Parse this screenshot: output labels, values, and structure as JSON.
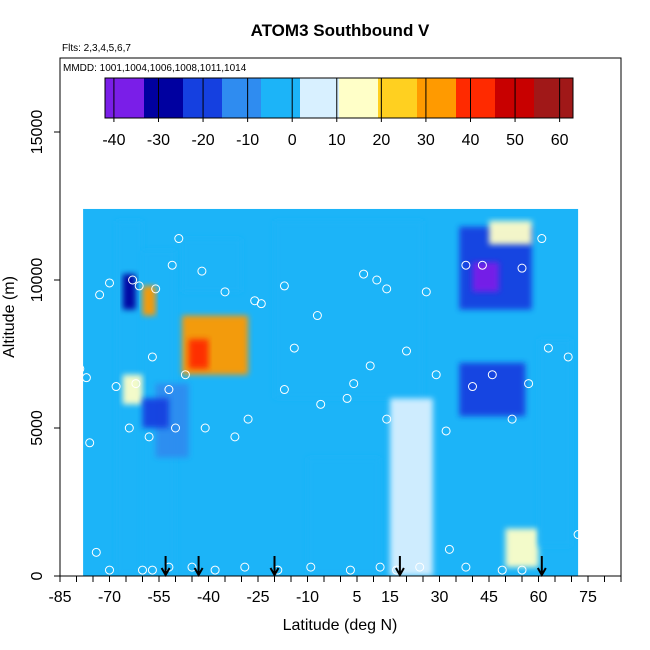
{
  "chart_data": {
    "type": "heatmap",
    "title": "ATOM3 Southbound V",
    "flights_label": "Flts: 2,3,4,5,6,7",
    "mmdd_label": "MMDD: 1001,1004,1006,1008,1011,1014",
    "xlabel": "Latitude (deg N)",
    "ylabel": "Altitude (m)",
    "xlim": [
      -85,
      85
    ],
    "ylim": [
      0,
      17500
    ],
    "x_ticks": [
      -85,
      -70,
      -55,
      -40,
      -25,
      -10,
      5,
      15,
      30,
      45,
      60,
      75
    ],
    "x_tick_labels": [
      "-85",
      "-70",
      "-55",
      "-40",
      "-25",
      "-10",
      "5",
      "15",
      "30",
      "45",
      "60",
      "75"
    ],
    "y_ticks": [
      0,
      5000,
      10000,
      15000
    ],
    "y_tick_labels": [
      "0",
      "5000",
      "10000",
      "15000"
    ],
    "colorbar": {
      "min": -42,
      "max": 63,
      "ticks": [
        -40,
        -30,
        -20,
        -10,
        0,
        10,
        20,
        30,
        40,
        50,
        60
      ],
      "tick_labels": [
        "-40",
        "-30",
        "-20",
        "-10",
        "0",
        "10",
        "20",
        "30",
        "40",
        "50",
        "60"
      ],
      "colors": [
        "#7a1ee8",
        "#0000a0",
        "#1540e0",
        "#2f8cf0",
        "#1cb4f8",
        "#d8f0ff",
        "#ffffc8",
        "#ffd020",
        "#ff9a00",
        "#ff2a00",
        "#c80000",
        "#a01818"
      ]
    },
    "field_regions": [
      {
        "lat": [
          -68,
          -60
        ],
        "alt": [
          0,
          12000
        ],
        "value": -6
      },
      {
        "lat": [
          -60,
          -50
        ],
        "alt": [
          0,
          11000
        ],
        "value": -2
      },
      {
        "lat": [
          -48,
          -28
        ],
        "alt": [
          6800,
          8800
        ],
        "value": 30
      },
      {
        "lat": [
          -46,
          -40
        ],
        "alt": [
          7000,
          8000
        ],
        "value": 45
      },
      {
        "lat": [
          -60,
          -56
        ],
        "alt": [
          8800,
          9800
        ],
        "value": 30
      },
      {
        "lat": [
          -66,
          -62
        ],
        "alt": [
          9000,
          10200
        ],
        "value": -28
      },
      {
        "lat": [
          -48,
          -30
        ],
        "alt": [
          9600,
          11400
        ],
        "value": -3
      },
      {
        "lat": [
          -56,
          -46
        ],
        "alt": [
          4000,
          6500
        ],
        "value": -14
      },
      {
        "lat": [
          -66,
          -60
        ],
        "alt": [
          5800,
          6800
        ],
        "value": 14
      },
      {
        "lat": [
          -60,
          -52
        ],
        "alt": [
          5000,
          6000
        ],
        "value": -18
      },
      {
        "lat": [
          -20,
          25
        ],
        "alt": [
          6000,
          12000
        ],
        "value": -2
      },
      {
        "lat": [
          15,
          28
        ],
        "alt": [
          0,
          6000
        ],
        "value": 6
      },
      {
        "lat": [
          -10,
          12
        ],
        "alt": [
          0,
          4000
        ],
        "value": -4
      },
      {
        "lat": [
          36,
          58
        ],
        "alt": [
          9000,
          11800
        ],
        "value": -22
      },
      {
        "lat": [
          40,
          48
        ],
        "alt": [
          9600,
          10600
        ],
        "value": -34
      },
      {
        "lat": [
          36,
          56
        ],
        "alt": [
          5400,
          7200
        ],
        "value": -16
      },
      {
        "lat": [
          50,
          60
        ],
        "alt": [
          300,
          1600
        ],
        "value": 14
      },
      {
        "lat": [
          45,
          58
        ],
        "alt": [
          11200,
          12000
        ],
        "value": 12
      },
      {
        "lat": [
          60,
          70
        ],
        "alt": [
          1000,
          8000
        ],
        "value": -4
      }
    ],
    "observation_points": [
      {
        "lat": -63,
        "alt": 10000
      },
      {
        "lat": -61,
        "alt": 9800
      },
      {
        "lat": -56,
        "alt": 9700
      },
      {
        "lat": -51,
        "alt": 10500
      },
      {
        "lat": -49,
        "alt": 11400
      },
      {
        "lat": -42,
        "alt": 10300
      },
      {
        "lat": -35,
        "alt": 9600
      },
      {
        "lat": -26,
        "alt": 9300
      },
      {
        "lat": -24,
        "alt": 9200
      },
      {
        "lat": -17,
        "alt": 9800
      },
      {
        "lat": -14,
        "alt": 7700
      },
      {
        "lat": -7,
        "alt": 8800
      },
      {
        "lat": 7,
        "alt": 10200
      },
      {
        "lat": 11,
        "alt": 10000
      },
      {
        "lat": 14,
        "alt": 9700
      },
      {
        "lat": 26,
        "alt": 9600
      },
      {
        "lat": 38,
        "alt": 10500
      },
      {
        "lat": 43,
        "alt": 10500
      },
      {
        "lat": 55,
        "alt": 10400
      },
      {
        "lat": 61,
        "alt": 11400
      },
      {
        "lat": -47,
        "alt": 6800
      },
      {
        "lat": -52,
        "alt": 6300
      },
      {
        "lat": -57,
        "alt": 7400
      },
      {
        "lat": -62,
        "alt": 6500
      },
      {
        "lat": -68,
        "alt": 6400
      },
      {
        "lat": -64,
        "alt": 5000
      },
      {
        "lat": -58,
        "alt": 4700
      },
      {
        "lat": -50,
        "alt": 5000
      },
      {
        "lat": -41,
        "alt": 5000
      },
      {
        "lat": -32,
        "alt": 4700
      },
      {
        "lat": -28,
        "alt": 5300
      },
      {
        "lat": -17,
        "alt": 6300
      },
      {
        "lat": -6,
        "alt": 5800
      },
      {
        "lat": 2,
        "alt": 6000
      },
      {
        "lat": 4,
        "alt": 6500
      },
      {
        "lat": 9,
        "alt": 7100
      },
      {
        "lat": 14,
        "alt": 5300
      },
      {
        "lat": 20,
        "alt": 7600
      },
      {
        "lat": 29,
        "alt": 6800
      },
      {
        "lat": 32,
        "alt": 4900
      },
      {
        "lat": 40,
        "alt": 6400
      },
      {
        "lat": 46,
        "alt": 6800
      },
      {
        "lat": 52,
        "alt": 5300
      },
      {
        "lat": 57,
        "alt": 6500
      },
      {
        "lat": 63,
        "alt": 7700
      },
      {
        "lat": 69,
        "alt": 7400
      },
      {
        "lat": -77,
        "alt": 6700
      },
      {
        "lat": -79,
        "alt": 7000
      },
      {
        "lat": -76,
        "alt": 4500
      },
      {
        "lat": -70,
        "alt": 9900
      },
      {
        "lat": -73,
        "alt": 9500
      },
      {
        "lat": -60,
        "alt": 200
      },
      {
        "lat": -57,
        "alt": 200
      },
      {
        "lat": -52,
        "alt": 300
      },
      {
        "lat": -45,
        "alt": 300
      },
      {
        "lat": -38,
        "alt": 200
      },
      {
        "lat": -29,
        "alt": 300
      },
      {
        "lat": -19,
        "alt": 200
      },
      {
        "lat": -9,
        "alt": 300
      },
      {
        "lat": 3,
        "alt": 200
      },
      {
        "lat": 12,
        "alt": 300
      },
      {
        "lat": 17,
        "alt": 200
      },
      {
        "lat": 24,
        "alt": 300
      },
      {
        "lat": 33,
        "alt": 900
      },
      {
        "lat": 38,
        "alt": 300
      },
      {
        "lat": 49,
        "alt": 200
      },
      {
        "lat": 55,
        "alt": 200
      },
      {
        "lat": 72,
        "alt": 1400
      },
      {
        "lat": -74,
        "alt": 800
      },
      {
        "lat": -70,
        "alt": 200
      }
    ],
    "flight_arrows_lat": [
      -53,
      -43,
      -20,
      18,
      61
    ]
  }
}
